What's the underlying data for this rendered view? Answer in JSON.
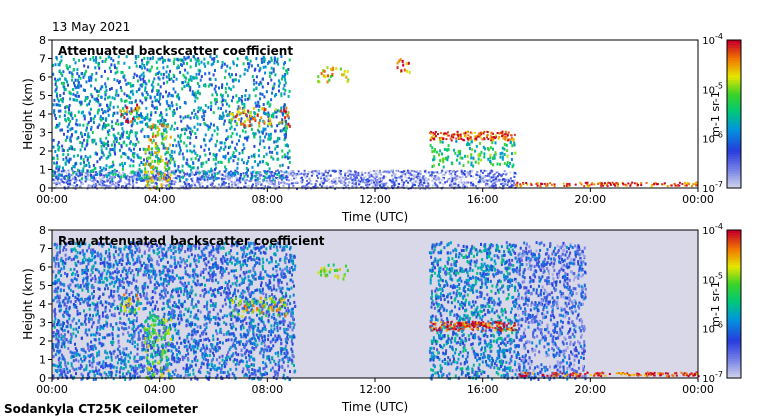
{
  "date": "13 May 2021",
  "site": "Sodankyla CT25K ceilometer",
  "chart_data": [
    {
      "type": "heatmap",
      "title": "Attenuated backscatter coefficient",
      "xlabel": "Time (UTC)",
      "ylabel": "Height (km)",
      "xticks": [
        "00:00",
        "04:00",
        "08:00",
        "12:00",
        "16:00",
        "20:00",
        "00:00"
      ],
      "xlim_hours": [
        0,
        24
      ],
      "yticks": [
        0,
        1,
        2,
        3,
        4,
        5,
        6,
        7,
        8
      ],
      "ylim": [
        0,
        8
      ],
      "colorbar": {
        "scale": "log",
        "min": 1e-07,
        "max": 0.0001,
        "ticks": [
          "10-7",
          "10-6",
          "10-5",
          "10-4"
        ],
        "unit": "m-1 sr-1",
        "colormap": "rainbow"
      },
      "features": [
        {
          "kind": "surface-layer",
          "t0": 0,
          "t1": 17.2,
          "h0": 0,
          "h1": 1.0,
          "level": 0.12
        },
        {
          "kind": "aerosol-speckle",
          "t0": 0,
          "t1": 8.8,
          "h0": 0.5,
          "h1": 7.2,
          "level": 0.4
        },
        {
          "kind": "cloud",
          "t0": 2.5,
          "t1": 3.2,
          "h0": 3.6,
          "h1": 4.6,
          "level": 0.85
        },
        {
          "kind": "cloud",
          "t0": 3.4,
          "t1": 4.4,
          "h0": 0.0,
          "h1": 3.5,
          "level": 0.75
        },
        {
          "kind": "cloud",
          "t0": 6.6,
          "t1": 8.8,
          "h0": 3.4,
          "h1": 4.4,
          "level": 0.85
        },
        {
          "kind": "cloud",
          "t0": 9.8,
          "t1": 11.0,
          "h0": 5.8,
          "h1": 6.6,
          "level": 0.75
        },
        {
          "kind": "cloud",
          "t0": 12.8,
          "t1": 13.3,
          "h0": 6.3,
          "h1": 7.2,
          "level": 0.85
        },
        {
          "kind": "cloud-layer",
          "t0": 14.0,
          "t1": 17.2,
          "h0": 2.6,
          "h1": 3.1,
          "level": 0.95
        },
        {
          "kind": "cloud",
          "t0": 14.0,
          "t1": 17.2,
          "h0": 1.2,
          "h1": 2.6,
          "level": 0.55
        },
        {
          "kind": "fog-layer",
          "t0": 17.2,
          "t1": 24,
          "h0": 0.15,
          "h1": 0.35,
          "level": 0.95
        }
      ]
    },
    {
      "type": "heatmap",
      "title": "Raw attenuated backscatter coefficient",
      "xlabel": "Time (UTC)",
      "ylabel": "Height (km)",
      "xticks": [
        "00:00",
        "04:00",
        "08:00",
        "12:00",
        "16:00",
        "20:00",
        "00:00"
      ],
      "xlim_hours": [
        0,
        24
      ],
      "yticks": [
        0,
        1,
        2,
        3,
        4,
        5,
        6,
        7,
        8
      ],
      "ylim": [
        0,
        8
      ],
      "colorbar": {
        "scale": "log",
        "min": 1e-07,
        "max": 0.0001,
        "ticks": [
          "10-7",
          "10-6",
          "10-5",
          "10-4"
        ],
        "unit": "m-1 sr-1",
        "colormap": "rainbow"
      },
      "features": [
        {
          "kind": "noise-band",
          "t0": 0,
          "t1": 9.0,
          "h0": 0,
          "h1": 7.4,
          "level": 0.3
        },
        {
          "kind": "noise-band",
          "t0": 14.0,
          "t1": 17.2,
          "h0": 0,
          "h1": 7.4,
          "level": 0.35
        },
        {
          "kind": "noise-band",
          "t0": 17.2,
          "t1": 19.8,
          "h0": 0,
          "h1": 7.4,
          "level": 0.22
        },
        {
          "kind": "cloud",
          "t0": 2.5,
          "t1": 3.2,
          "h0": 3.6,
          "h1": 4.6,
          "level": 0.75
        },
        {
          "kind": "cloud",
          "t0": 3.4,
          "t1": 4.4,
          "h0": 0.0,
          "h1": 3.5,
          "level": 0.65
        },
        {
          "kind": "cloud",
          "t0": 6.6,
          "t1": 8.8,
          "h0": 3.4,
          "h1": 4.4,
          "level": 0.75
        },
        {
          "kind": "cloud",
          "t0": 9.8,
          "t1": 11.0,
          "h0": 5.4,
          "h1": 6.2,
          "level": 0.7
        },
        {
          "kind": "cloud-layer",
          "t0": 14.0,
          "t1": 17.2,
          "h0": 2.6,
          "h1": 3.1,
          "level": 0.95
        },
        {
          "kind": "fog-layer",
          "t0": 17.2,
          "t1": 24,
          "h0": 0.15,
          "h1": 0.35,
          "level": 0.95
        }
      ]
    }
  ]
}
